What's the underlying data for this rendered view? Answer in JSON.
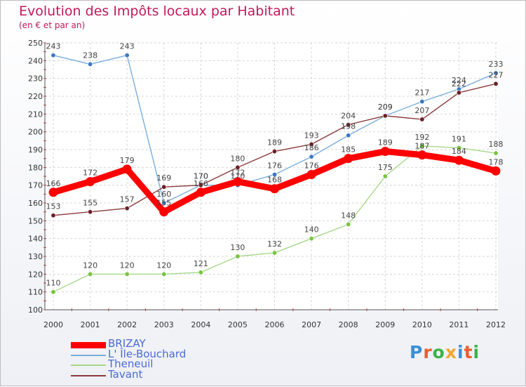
{
  "header": {
    "title": "Evolution des Impôts locaux par Habitant",
    "subtitle": "(en € et par an)"
  },
  "logo": {
    "text": "Proxiti",
    "letters": [
      "P",
      "r",
      "o",
      "x",
      "i",
      "t",
      "i"
    ],
    "colors": [
      "#3b8fd4",
      "#e8602c",
      "#3bb34a",
      "#f0a92d",
      "#3b8fd4",
      "#e8602c",
      "#3bb34a"
    ]
  },
  "chart_data": {
    "type": "line",
    "title": "Evolution des Impôts locaux par Habitant",
    "subtitle": "(en € et par an)",
    "xlabel": "",
    "ylabel": "",
    "x": [
      "2000",
      "2001",
      "2002",
      "2003",
      "2004",
      "2005",
      "2006",
      "2007",
      "2008",
      "2009",
      "2010",
      "2011",
      "2012"
    ],
    "ylim": [
      100,
      250
    ],
    "yticks": [
      "100",
      "110",
      "120",
      "130",
      "140",
      "150",
      "160",
      "170",
      "180",
      "190",
      "200",
      "210",
      "220",
      "230",
      "240",
      "250"
    ],
    "grid": true,
    "legend_position": "bottom-left",
    "series": [
      {
        "name": "BRIZAY",
        "color": "#ff0000",
        "emphasis": true,
        "values": [
          166,
          172,
          179,
          155,
          166,
          172,
          168,
          176,
          185,
          189,
          187,
          184,
          178
        ],
        "labels": [
          "166",
          "172",
          "179",
          "155",
          "166",
          "172",
          "168",
          "176",
          "185",
          "189",
          "187",
          "184",
          "178"
        ]
      },
      {
        "name": "L' Île-Bouchard",
        "color": "#7aaedc",
        "marker": "#3a77c2",
        "emphasis": false,
        "values": [
          243,
          238,
          243,
          160,
          170,
          170,
          176,
          186,
          198,
          209,
          217,
          224,
          233
        ],
        "labels": [
          "243",
          "238",
          "243",
          "160",
          "170",
          "170",
          "176",
          "186",
          "198",
          "209",
          "217",
          "224",
          "233"
        ]
      },
      {
        "name": "Theneuil",
        "color": "#a6d98a",
        "marker": "#78c43e",
        "emphasis": false,
        "values": [
          110,
          120,
          120,
          120,
          121,
          130,
          132,
          140,
          148,
          175,
          192,
          191,
          188
        ],
        "labels": [
          "110",
          "120",
          "120",
          "120",
          "121",
          "130",
          "132",
          "140",
          "148",
          "175",
          "192",
          "191",
          "188"
        ]
      },
      {
        "name": "Tavant",
        "color": "#8a3a3a",
        "marker": "#6b1e26",
        "emphasis": false,
        "values": [
          153,
          155,
          157,
          169,
          170,
          180,
          189,
          193,
          204,
          209,
          207,
          222,
          227
        ],
        "labels": [
          "153",
          "155",
          "157",
          "169",
          "170",
          "180",
          "189",
          "193",
          "204",
          "209",
          "207",
          "222",
          "227"
        ]
      }
    ]
  }
}
